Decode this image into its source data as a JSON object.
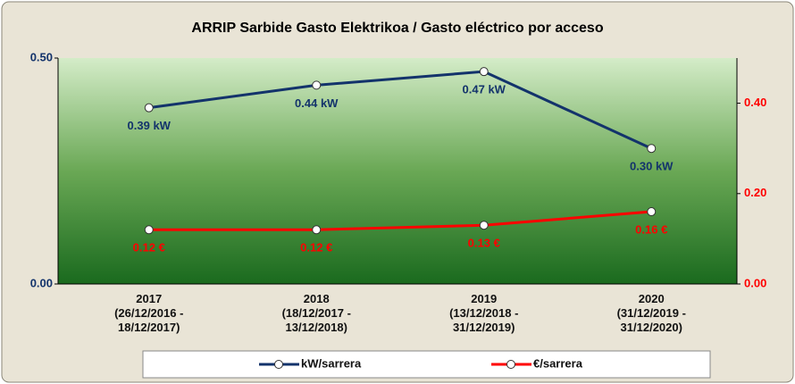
{
  "chart_data": {
    "type": "line",
    "title": "ARRIP Sarbide Gasto Elektrikoa / Gasto eléctrico por acceso",
    "categories": [
      "2017\n(26/12/2016 -\n18/12/2017)",
      "2018\n(18/12/2017 -\n13/12/2018)",
      "2019\n(13/12/2018 -\n31/12/2019)",
      "2020\n(31/12/2019 -\n31/12/2020)"
    ],
    "series": [
      {
        "name": "kW/sarrera",
        "color": "#13336b",
        "values": [
          0.39,
          0.44,
          0.47,
          0.3
        ],
        "value_labels": [
          "0.39 kW",
          "0.44 kW",
          "0.47 kW",
          "0.30 kW"
        ]
      },
      {
        "name": "€/sarrera",
        "color": "#ff0000",
        "axis": "y2",
        "values": [
          0.12,
          0.12,
          0.13,
          0.16
        ],
        "value_labels": [
          "0.12 €",
          "0.12 €",
          "0.13 €",
          "0.16 €"
        ]
      }
    ],
    "ylim": [
      0,
      0.5
    ],
    "yticks": [
      {
        "value": 0,
        "label": "0.00"
      },
      {
        "value": 0.5,
        "label": "0.50"
      }
    ],
    "y2lim": [
      0,
      0.5
    ],
    "y2ticks": [
      {
        "value": 0,
        "label": "0.00"
      },
      {
        "value": 0.2,
        "label": "0.20"
      },
      {
        "value": 0.4,
        "label": "0.40"
      }
    ],
    "legend": "bottom"
  }
}
